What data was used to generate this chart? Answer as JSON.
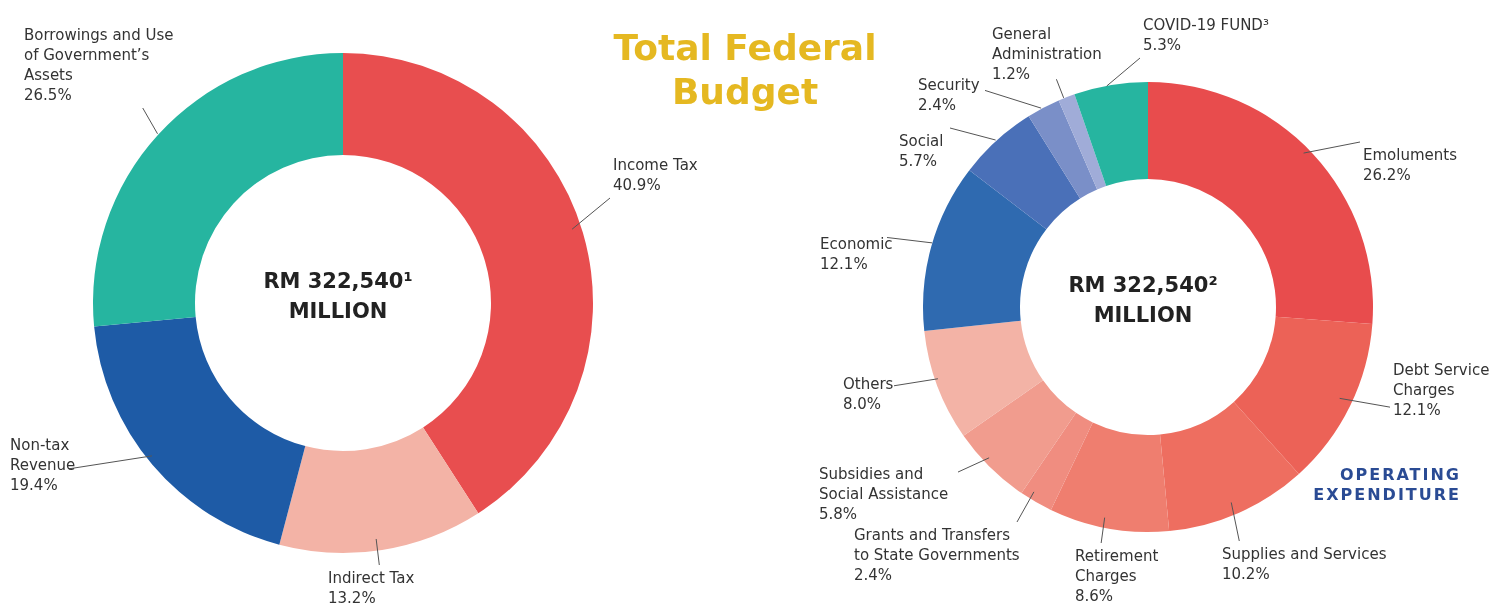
{
  "chart_data": [
    {
      "type": "donut",
      "title": "Total Federal Budget",
      "categories": [
        "Income Tax",
        "Indirect Tax",
        "Non-tax Revenue",
        "Borrowings and Use of Government’s Assets"
      ],
      "values": [
        40.9,
        13.2,
        19.4,
        26.5
      ],
      "value_labels": [
        "40.9%",
        "13.2%",
        "19.4%",
        "26.5%"
      ],
      "colors": [
        "#e84e4f",
        "#f3b3a6",
        "#1e5ba6",
        "#26b5a0"
      ],
      "annotations": [
        "RM 322,540¹",
        "MILLION"
      ],
      "legend": false
    },
    {
      "type": "donut",
      "categories": [
        "Emoluments",
        "Debt Service Charges",
        "Supplies and Services",
        "Retirement Charges",
        "Grants and Transfers to State Governments",
        "Subsidies and Social Assistance",
        "Others",
        "Economic",
        "Social",
        "Security",
        "General Administration",
        "COVID-19 FUND³"
      ],
      "values": [
        26.2,
        12.1,
        10.2,
        8.6,
        2.4,
        5.8,
        8.0,
        12.1,
        5.7,
        2.4,
        1.2,
        5.3
      ],
      "value_labels": [
        "26.2%",
        "12.1%",
        "10.2%",
        "8.6%",
        "2.4%",
        "5.8%",
        "8.0%",
        "12.1%",
        "5.7%",
        "2.4%",
        "1.2%",
        "5.3%"
      ],
      "colors": [
        "#e84c4d",
        "#ec6257",
        "#ee6e60",
        "#ef7e6f",
        "#f08d80",
        "#f19c8e",
        "#f3b3a6",
        "#2f6ab0",
        "#4a70b8",
        "#7a8fc8",
        "#a0acd8",
        "#26b5a0"
      ],
      "annotations": [
        "RM 322,540²",
        "MILLION",
        "OPERATING EXPENDITURE"
      ],
      "legend": false
    }
  ]
}
